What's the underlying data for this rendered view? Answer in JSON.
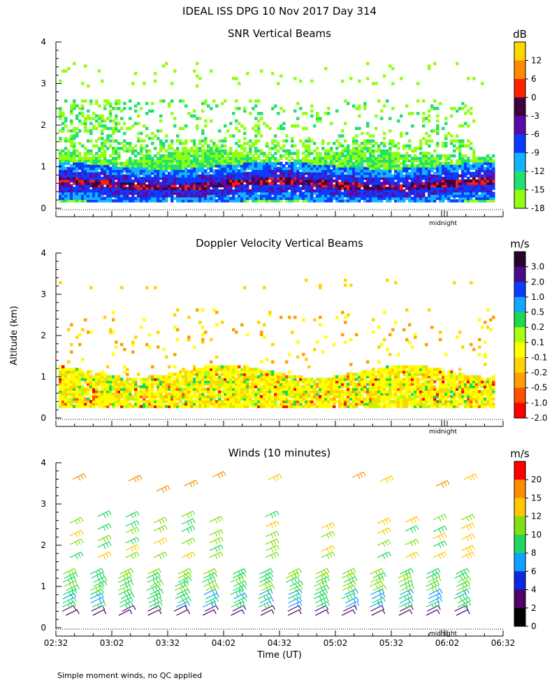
{
  "header": {
    "title": "IDEAL ISS DPG  10 Nov 2017 Day 314"
  },
  "figure": {
    "ylabel": "Altitude (km)",
    "xlabel": "Time (UT)",
    "footnote": "Simple moment winds, no QC applied",
    "midnight_label": "midnight"
  },
  "chart_data": [
    {
      "type": "heatmap",
      "title": "SNR Vertical Beams",
      "x_range": [
        "02:32",
        "06:32"
      ],
      "ylim": [
        0,
        4
      ],
      "y_ticks": [
        0,
        1,
        2,
        3,
        4
      ],
      "colorbar": {
        "unit": "dB",
        "labels": [
          "12",
          "6",
          "0",
          "-3",
          "-6",
          "-9",
          "-12",
          "-15",
          "-18"
        ],
        "colors": [
          "#ffd700",
          "#ff8c00",
          "#ff2000",
          "#3d003d",
          "#5a0aa8",
          "#0a3cff",
          "#12b4ff",
          "#20e070",
          "#90ff10"
        ]
      },
      "x_tick_labels_shown": false
    },
    {
      "type": "heatmap",
      "title": "Doppler Velocity Vertical Beams",
      "x_range": [
        "02:32",
        "06:32"
      ],
      "ylim": [
        0,
        4
      ],
      "y_ticks": [
        0,
        1,
        2,
        3,
        4
      ],
      "colorbar": {
        "unit": "m/s",
        "labels": [
          "3.0",
          "2.0",
          "1.0",
          "0.5",
          "0.2",
          "0.1",
          "-0.1",
          "-0.2",
          "-0.5",
          "-1.0",
          "-2.0"
        ],
        "colors": [
          "#2a0030",
          "#4b0a8a",
          "#0a3cff",
          "#12a8ff",
          "#20d850",
          "#a8ff10",
          "#ffff00",
          "#ffd400",
          "#ffa000",
          "#ff5000",
          "#ff0000"
        ]
      },
      "x_tick_labels_shown": false
    },
    {
      "type": "scatter",
      "title": "Winds (10 minutes)",
      "x_range": [
        "02:32",
        "06:32"
      ],
      "x_ticks": [
        "02:32",
        "03:02",
        "03:32",
        "04:02",
        "04:32",
        "05:02",
        "05:32",
        "06:02",
        "06:32"
      ],
      "ylim": [
        0,
        4
      ],
      "y_ticks": [
        0,
        1,
        2,
        3,
        4
      ],
      "colorbar": {
        "unit": "m/s",
        "labels": [
          "20",
          "15",
          "12",
          "10",
          "8",
          "6",
          "4",
          "2",
          "0"
        ],
        "colors": [
          "#ff0000",
          "#ff8c00",
          "#ffc800",
          "#80e010",
          "#20d860",
          "#10a0ff",
          "#0a28e0",
          "#50006a",
          "#000000"
        ]
      }
    }
  ]
}
